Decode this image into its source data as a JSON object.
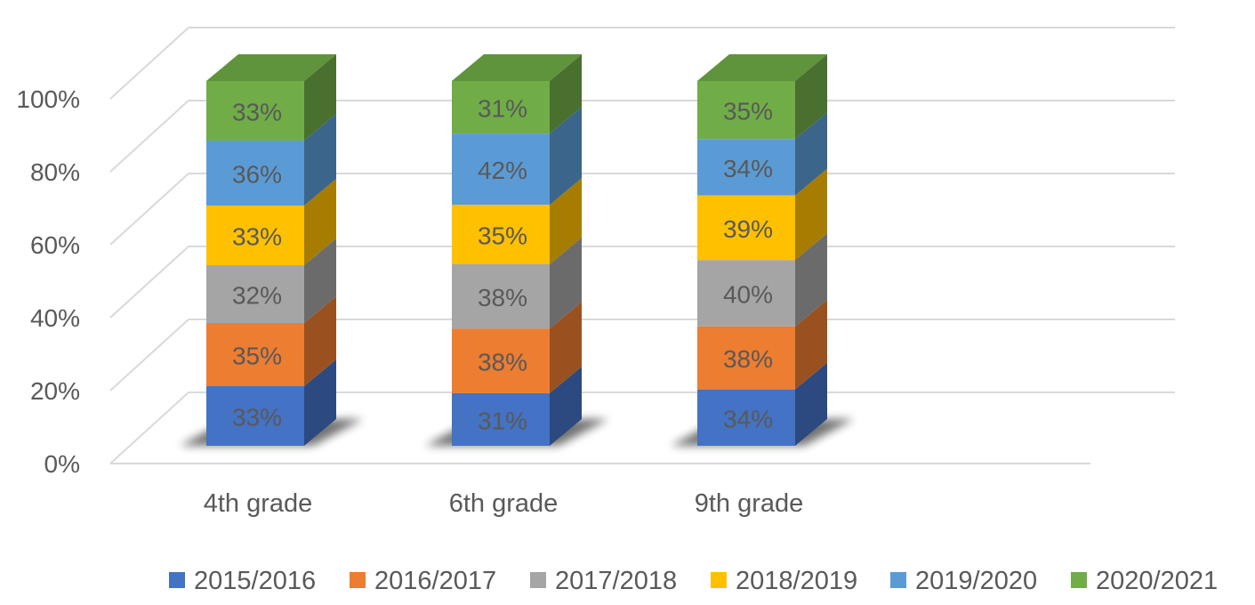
{
  "chart_data": {
    "type": "bar",
    "stacked": "percent",
    "style": "3d",
    "title": "",
    "xlabel": "",
    "ylabel": "",
    "ylim": [
      0,
      100
    ],
    "yticks": [
      "0%",
      "20%",
      "40%",
      "60%",
      "80%",
      "100%"
    ],
    "legend_position": "bottom",
    "grid": true,
    "categories": [
      "4th grade",
      "6th grade",
      "9th grade"
    ],
    "series": [
      {
        "name": "2015/2016",
        "color": "#4472C4",
        "values": [
          33,
          31,
          34
        ],
        "labels": [
          "33%",
          "31%",
          "34%"
        ]
      },
      {
        "name": "2016/2017",
        "color": "#ED7D31",
        "values": [
          35,
          38,
          38
        ],
        "labels": [
          "35%",
          "38%",
          "38%"
        ]
      },
      {
        "name": "2017/2018",
        "color": "#A5A5A5",
        "values": [
          32,
          38,
          40
        ],
        "labels": [
          "32%",
          "38%",
          "40%"
        ]
      },
      {
        "name": "2018/2019",
        "color": "#FFC000",
        "values": [
          33,
          35,
          39
        ],
        "labels": [
          "33%",
          "35%",
          "39%"
        ]
      },
      {
        "name": "2019/2020",
        "color": "#5B9BD5",
        "values": [
          36,
          42,
          34
        ],
        "labels": [
          "36%",
          "42%",
          "34%"
        ]
      },
      {
        "name": "2020/2021",
        "color": "#70AD47",
        "values": [
          33,
          31,
          35
        ],
        "labels": [
          "33%",
          "31%",
          "35%"
        ]
      }
    ]
  }
}
